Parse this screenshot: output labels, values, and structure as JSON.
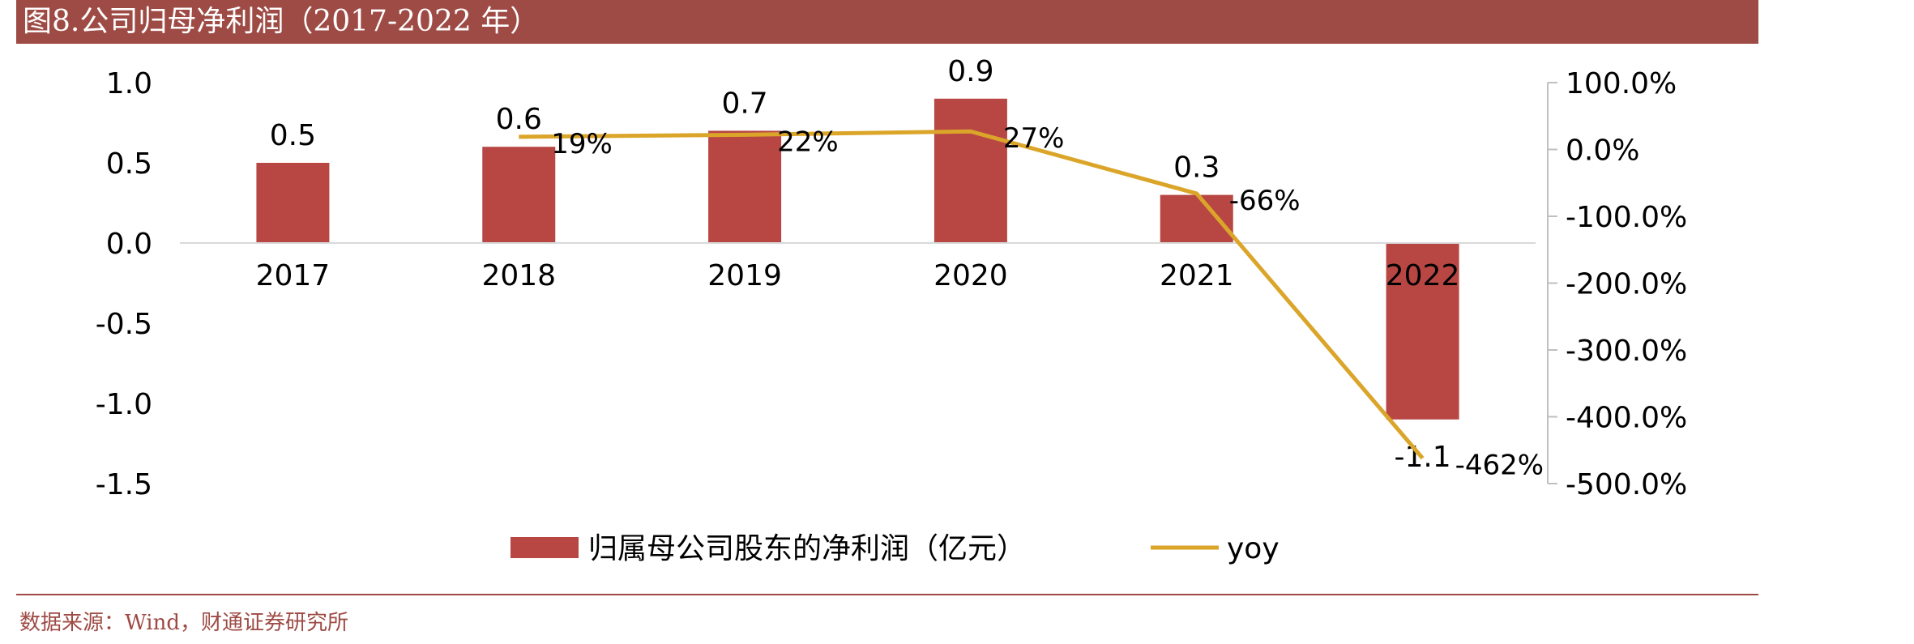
{
  "title": "图8.公司归母净利润（2017-2022 年）",
  "source": "数据来源：Wind，财通证券研究所",
  "colors": {
    "bar": "#b84744",
    "line": "#dba52a",
    "accent": "#9e4b45"
  },
  "chart_data": {
    "type": "bar",
    "categories": [
      "2017",
      "2018",
      "2019",
      "2020",
      "2021",
      "2022"
    ],
    "series": [
      {
        "name": "归属母公司股东的净利润（亿元）",
        "type": "bar",
        "axis": "left",
        "values": [
          0.5,
          0.6,
          0.7,
          0.9,
          0.3,
          -1.1
        ],
        "labels": [
          "0.5",
          "0.6",
          "0.7",
          "0.9",
          "0.3",
          "-1.1"
        ]
      },
      {
        "name": "yoy",
        "type": "line",
        "axis": "right",
        "values": [
          null,
          19,
          22,
          27,
          -66,
          -462
        ],
        "labels": [
          "",
          "19%",
          "22%",
          "27%",
          "-66%",
          "-462%"
        ]
      }
    ],
    "left_axis": {
      "ylim": [
        -1.5,
        1.0
      ],
      "ticks": [
        "1.0",
        "0.5",
        "0.0",
        "-0.5",
        "-1.0",
        "-1.5"
      ],
      "tick_values": [
        1.0,
        0.5,
        0.0,
        -0.5,
        -1.0,
        -1.5
      ]
    },
    "right_axis": {
      "ylim": [
        -500,
        100
      ],
      "ticks": [
        "100.0%",
        "0.0%",
        "-100.0%",
        "-200.0%",
        "-300.0%",
        "-400.0%",
        "-500.0%"
      ],
      "tick_values": [
        100,
        0,
        -100,
        -200,
        -300,
        -400,
        -500
      ]
    },
    "legend_position": "bottom",
    "grid": false
  }
}
